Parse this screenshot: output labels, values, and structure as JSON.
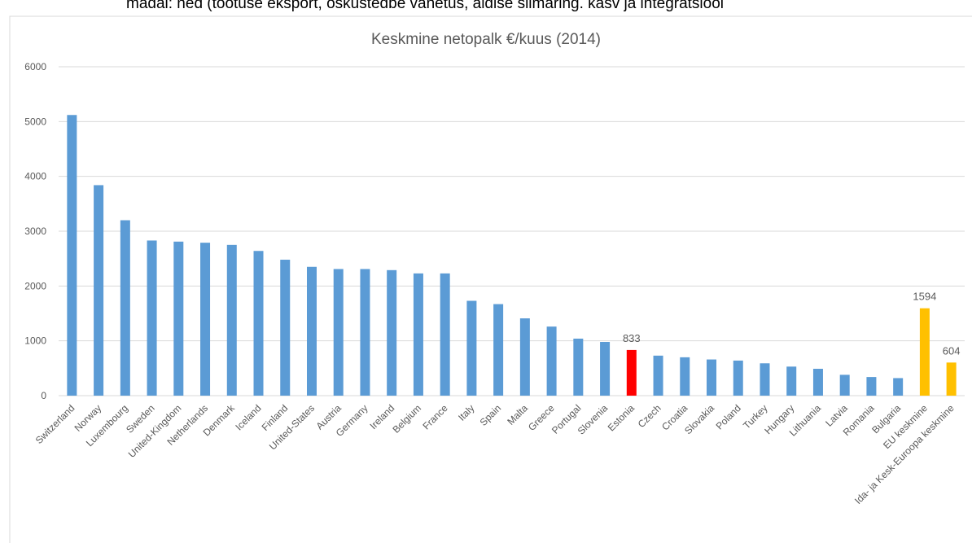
{
  "caption": "madal: ned (tootuse eksport, oskustedbe vanetus, aldise siimaring. kasv ja integratsiool",
  "chart_data": {
    "type": "bar",
    "title": "Keskmine netopalk €/kuus (2014)",
    "categories": [
      "Switzerland",
      "Norway",
      "Luxembourg",
      "Sweden",
      "United-Kingdom",
      "Netherlands",
      "Denmark",
      "Iceland",
      "Finland",
      "United-States",
      "Austria",
      "Germany",
      "Ireland",
      "Belgium",
      "France",
      "Italy",
      "Spain",
      "Malta",
      "Greece",
      "Portugal",
      "Slovenia",
      "Estonia",
      "Czech",
      "Croatia",
      "Slovakia",
      "Poland",
      "Turkey",
      "Hungary",
      "Lithuania",
      "Latvia",
      "Romania",
      "Bulgaria",
      "EU keskmine",
      "Ida- ja Kesk-Euroopa keskmine"
    ],
    "values": [
      5120,
      3840,
      3200,
      2830,
      2810,
      2790,
      2750,
      2640,
      2480,
      2350,
      2310,
      2310,
      2290,
      2230,
      2230,
      1730,
      1670,
      1410,
      1260,
      1040,
      980,
      833,
      730,
      700,
      660,
      640,
      590,
      530,
      490,
      380,
      340,
      320,
      1594,
      604
    ],
    "value_labels": [
      null,
      null,
      null,
      null,
      null,
      null,
      null,
      null,
      null,
      null,
      null,
      null,
      null,
      null,
      null,
      null,
      null,
      null,
      null,
      null,
      null,
      "833",
      null,
      null,
      null,
      null,
      null,
      null,
      null,
      null,
      null,
      null,
      "1594",
      "604"
    ],
    "colors": [
      "#5b9bd5",
      "#5b9bd5",
      "#5b9bd5",
      "#5b9bd5",
      "#5b9bd5",
      "#5b9bd5",
      "#5b9bd5",
      "#5b9bd5",
      "#5b9bd5",
      "#5b9bd5",
      "#5b9bd5",
      "#5b9bd5",
      "#5b9bd5",
      "#5b9bd5",
      "#5b9bd5",
      "#5b9bd5",
      "#5b9bd5",
      "#5b9bd5",
      "#5b9bd5",
      "#5b9bd5",
      "#5b9bd5",
      "#ff0000",
      "#5b9bd5",
      "#5b9bd5",
      "#5b9bd5",
      "#5b9bd5",
      "#5b9bd5",
      "#5b9bd5",
      "#5b9bd5",
      "#5b9bd5",
      "#5b9bd5",
      "#5b9bd5",
      "#ffc000",
      "#ffc000"
    ],
    "ylim": [
      0,
      6000
    ],
    "yticks": [
      0,
      1000,
      2000,
      3000,
      4000,
      5000,
      6000
    ],
    "grid": true
  }
}
